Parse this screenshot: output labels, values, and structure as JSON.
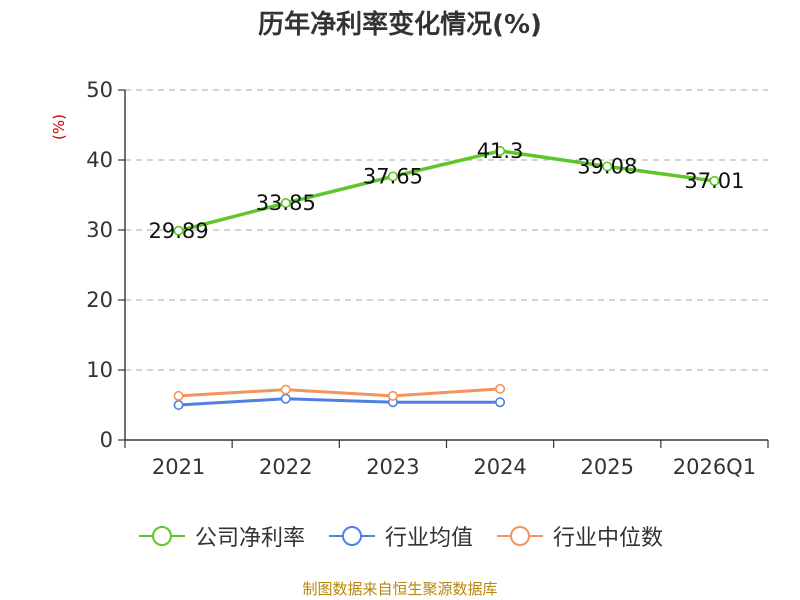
{
  "chart_data": {
    "type": "line",
    "title": "历年净利率变化情况(%)",
    "ylabel": "(%)",
    "categories": [
      "2021",
      "2022",
      "2023",
      "2024",
      "2025",
      "2026Q1"
    ],
    "ylim": [
      0,
      50
    ],
    "yticks": [
      0,
      10,
      20,
      30,
      40,
      50
    ],
    "grid": true,
    "legend_position": "bottom",
    "series": [
      {
        "name": "公司净利率",
        "color": "#5fc62a",
        "values": [
          29.89,
          33.85,
          37.65,
          41.3,
          39.08,
          37.01
        ],
        "labels": [
          "29.89",
          "33.85",
          "37.65",
          "41.3",
          "39.08",
          "37.01"
        ]
      },
      {
        "name": "行业均值",
        "color": "#4f7fe0",
        "values": [
          5.0,
          5.9,
          5.4,
          5.4,
          null,
          null
        ]
      },
      {
        "name": "行业中位数",
        "color": "#f5935c",
        "values": [
          6.3,
          7.2,
          6.3,
          7.3,
          null,
          null
        ]
      }
    ]
  },
  "source": "制图数据来自恒生聚源数据库"
}
